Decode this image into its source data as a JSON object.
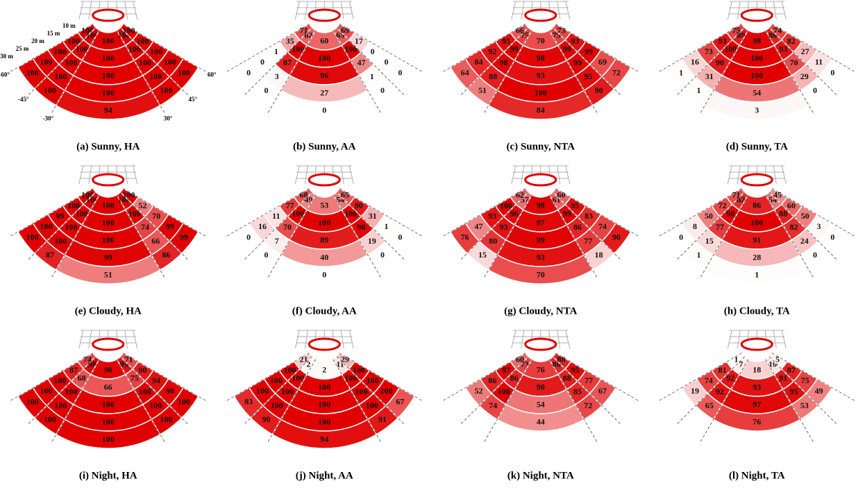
{
  "chart_data": [
    {
      "type": "fan",
      "title": "(a) Sunny, HA",
      "color": "#e00000",
      "rticks": [
        {
          "value": 10,
          "label": "10 m"
        },
        {
          "value": 15,
          "label": "15 m"
        },
        {
          "value": 20,
          "label": "20 m"
        },
        {
          "value": 25,
          "label": "25 m"
        },
        {
          "value": 30,
          "label": "30 m"
        }
      ],
      "angle_ticks": [
        {
          "value": -60,
          "label": "-60°"
        },
        {
          "value": -45,
          "label": "-45°"
        },
        {
          "value": -30,
          "label": "-30°"
        },
        {
          "value": 30,
          "label": "30°"
        },
        {
          "value": 45,
          "label": "45°"
        },
        {
          "value": 60,
          "label": "60°"
        }
      ],
      "values": [
        [
          100,
          100,
          100,
          100,
          100
        ],
        [
          100,
          100,
          100,
          100,
          100
        ],
        [
          100,
          100,
          100,
          100,
          100
        ],
        [
          100,
          100,
          100,
          100,
          100
        ],
        [
          100,
          100,
          94,
          100,
          100
        ]
      ]
    },
    {
      "type": "fan",
      "title": "(b) Sunny, AA",
      "color": "#e00000",
      "values": [
        [
          71,
          62,
          60,
          65,
          69
        ],
        [
          35,
          100,
          100,
          100,
          17
        ],
        [
          1,
          87,
          96,
          47,
          0
        ],
        [
          0,
          3,
          27,
          1,
          0
        ],
        [
          0,
          0,
          0,
          0,
          0
        ]
      ]
    },
    {
      "type": "fan",
      "title": "(c) Sunny, NTA",
      "color": "#e00000",
      "values": [
        [
          66,
          75,
          70,
          75,
          73
        ],
        [
          95,
          99,
          98,
          99,
          93
        ],
        [
          92,
          98,
          93,
          99,
          99
        ],
        [
          84,
          88,
          100,
          95,
          69
        ],
        [
          64,
          51,
          84,
          90,
          72
        ]
      ]
    },
    {
      "type": "fan",
      "title": "(d) Sunny, TA",
      "color": "#e00000",
      "values": [
        [
          75,
          89,
          98,
          88,
          74
        ],
        [
          93,
          100,
          100,
          93,
          82
        ],
        [
          73,
          90,
          100,
          70,
          27
        ],
        [
          16,
          31,
          54,
          29,
          11
        ],
        [
          1,
          1,
          3,
          0,
          0
        ]
      ]
    },
    {
      "type": "fan",
      "title": "(e) Cloudy, HA",
      "color": "#e00000",
      "values": [
        [
          100,
          100,
          100,
          100,
          100
        ],
        [
          100,
          100,
          100,
          100,
          52
        ],
        [
          99,
          100,
          100,
          74,
          70
        ],
        [
          100,
          100,
          99,
          66,
          99
        ],
        [
          100,
          87,
          51,
          86,
          99
        ]
      ]
    },
    {
      "type": "fan",
      "title": "(f) Cloudy, AA",
      "color": "#e00000",
      "values": [
        [
          68,
          49,
          53,
          54,
          65
        ],
        [
          77,
          100,
          100,
          100,
          90
        ],
        [
          11,
          70,
          89,
          98,
          31
        ],
        [
          16,
          7,
          40,
          19,
          1
        ],
        [
          0,
          0,
          0,
          0,
          0
        ]
      ]
    },
    {
      "type": "fan",
      "title": "(g) Cloudy, NTA",
      "color": "#e00000",
      "values": [
        [
          62,
          57,
          98,
          61,
          60
        ],
        [
          100,
          96,
          97,
          99,
          95
        ],
        [
          93,
          93,
          99,
          86,
          83
        ],
        [
          47,
          80,
          93,
          77,
          74
        ],
        [
          76,
          15,
          70,
          18,
          90
        ]
      ]
    },
    {
      "type": "fan",
      "title": "(h) Cloudy, TA",
      "color": "#e00000",
      "values": [
        [
          71,
          82,
          86,
          54,
          45
        ],
        [
          72,
          98,
          100,
          88,
          60
        ],
        [
          50,
          77,
          91,
          82,
          50
        ],
        [
          8,
          15,
          28,
          24,
          3
        ],
        [
          0,
          1,
          1,
          0,
          0
        ]
      ]
    },
    {
      "type": "fan",
      "title": "(i) Night, HA",
      "color": "#e00000",
      "values": [
        [
          74,
          98,
          98,
          95,
          71
        ],
        [
          87,
          68,
          66,
          75,
          90
        ],
        [
          100,
          100,
          100,
          100,
          94
        ],
        [
          100,
          100,
          100,
          100,
          98
        ],
        [
          100,
          100,
          100,
          100,
          100
        ]
      ]
    },
    {
      "type": "fan",
      "title": "(j) Night, AA",
      "color": "#e00000",
      "values": [
        [
          21,
          2,
          2,
          11,
          29
        ],
        [
          100,
          100,
          100,
          100,
          100
        ],
        [
          100,
          100,
          100,
          100,
          100
        ],
        [
          100,
          100,
          100,
          100,
          100
        ],
        [
          83,
          90,
          94,
          91,
          67
        ]
      ]
    },
    {
      "type": "fan",
      "title": "(k) Night, NTA",
      "color": "#e00000",
      "values": [
        [
          60,
          73,
          76,
          86,
          88
        ],
        [
          97,
          86,
          90,
          88,
          95
        ],
        [
          86,
          100,
          54,
          85,
          77
        ],
        [
          52,
          74,
          44,
          72,
          67
        ]
      ]
    },
    {
      "type": "fan",
      "title": "(l) Night, TA",
      "color": "#e00000",
      "values": [
        [
          1,
          7,
          18,
          10,
          5
        ],
        [
          81,
          92,
          93,
          91,
          87
        ],
        [
          74,
          92,
          97,
          95,
          75
        ],
        [
          19,
          65,
          76,
          53,
          49
        ]
      ]
    }
  ]
}
